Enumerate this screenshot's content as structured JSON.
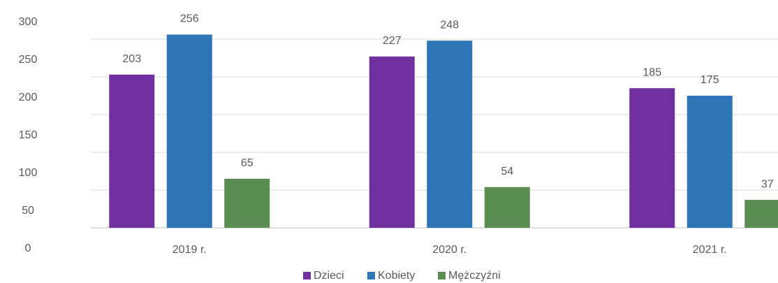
{
  "chart_data": {
    "type": "bar",
    "categories": [
      "2019 r.",
      "2020 r.",
      "2021 r."
    ],
    "series": [
      {
        "name": "Dzieci",
        "color": "#7030a0",
        "values": [
          203,
          227,
          185
        ]
      },
      {
        "name": "Kobiety",
        "color": "#2e75b6",
        "values": [
          256,
          248,
          175
        ]
      },
      {
        "name": "Mężczyźni",
        "color": "#5b8c51",
        "values": [
          65,
          54,
          37
        ]
      }
    ],
    "ylim": [
      0,
      300
    ],
    "yticks": [
      0,
      50,
      100,
      150,
      200,
      250,
      300
    ],
    "grid": true,
    "legend": "bottom"
  }
}
